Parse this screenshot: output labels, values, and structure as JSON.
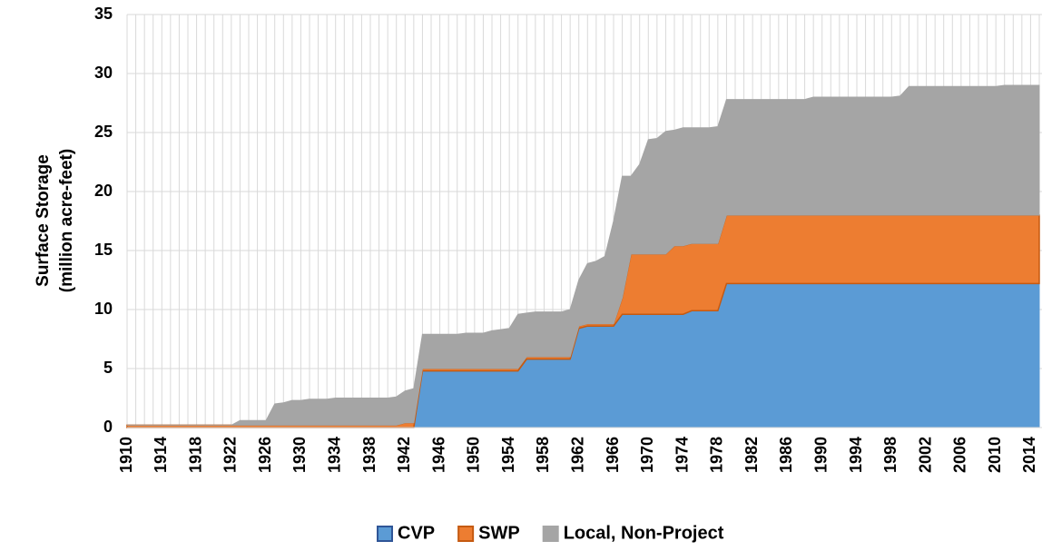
{
  "chart_data": {
    "type": "stacked_area",
    "y_label": [
      "Surface Storage",
      "(million acre-feet)"
    ],
    "x": [
      1910,
      1911,
      1912,
      1913,
      1914,
      1915,
      1916,
      1917,
      1918,
      1919,
      1920,
      1921,
      1922,
      1923,
      1924,
      1925,
      1926,
      1927,
      1928,
      1929,
      1930,
      1931,
      1932,
      1933,
      1934,
      1935,
      1936,
      1937,
      1938,
      1939,
      1940,
      1941,
      1942,
      1943,
      1944,
      1945,
      1946,
      1947,
      1948,
      1949,
      1950,
      1951,
      1952,
      1953,
      1954,
      1955,
      1956,
      1957,
      1958,
      1959,
      1960,
      1961,
      1962,
      1963,
      1964,
      1965,
      1966,
      1967,
      1968,
      1969,
      1970,
      1971,
      1972,
      1973,
      1974,
      1975,
      1976,
      1977,
      1978,
      1979,
      1980,
      1981,
      1982,
      1983,
      1984,
      1985,
      1986,
      1987,
      1988,
      1989,
      1990,
      1991,
      1992,
      1993,
      1994,
      1995,
      1996,
      1997,
      1998,
      1999,
      2000,
      2001,
      2002,
      2003,
      2004,
      2005,
      2006,
      2007,
      2008,
      2009,
      2010,
      2011,
      2012,
      2013,
      2014,
      2015
    ],
    "series": [
      {
        "name": "CVP",
        "color": "#5b9bd5",
        "values": [
          0,
          0,
          0,
          0,
          0,
          0,
          0,
          0,
          0,
          0,
          0,
          0,
          0,
          0,
          0,
          0,
          0,
          0,
          0,
          0,
          0,
          0,
          0,
          0,
          0,
          0,
          0,
          0,
          0,
          0,
          0,
          0,
          0,
          0,
          4.8,
          4.8,
          4.8,
          4.8,
          4.8,
          4.8,
          4.8,
          4.8,
          4.8,
          4.8,
          4.8,
          4.8,
          5.8,
          5.8,
          5.8,
          5.8,
          5.8,
          5.8,
          8.4,
          8.6,
          8.6,
          8.6,
          8.6,
          9.6,
          9.6,
          9.6,
          9.6,
          9.6,
          9.6,
          9.6,
          9.6,
          9.9,
          9.9,
          9.9,
          9.9,
          12.2,
          12.2,
          12.2,
          12.2,
          12.2,
          12.2,
          12.2,
          12.2,
          12.2,
          12.2,
          12.2,
          12.2,
          12.2,
          12.2,
          12.2,
          12.2,
          12.2,
          12.2,
          12.2,
          12.2,
          12.2,
          12.2,
          12.2,
          12.2,
          12.2,
          12.2,
          12.2,
          12.2,
          12.2,
          12.2,
          12.2,
          12.2,
          12.2,
          12.2,
          12.2,
          12.2,
          12.2
        ]
      },
      {
        "name": "SWP",
        "color": "#ed7d31",
        "values": [
          0.2,
          0.2,
          0.2,
          0.2,
          0.2,
          0.2,
          0.2,
          0.2,
          0.2,
          0.2,
          0.2,
          0.2,
          0.2,
          0.2,
          0.2,
          0.2,
          0.2,
          0.2,
          0.2,
          0.2,
          0.2,
          0.2,
          0.2,
          0.2,
          0.2,
          0.2,
          0.2,
          0.2,
          0.2,
          0.2,
          0.2,
          0.2,
          0.4,
          0.4,
          0.2,
          0.2,
          0.2,
          0.2,
          0.2,
          0.2,
          0.2,
          0.2,
          0.2,
          0.2,
          0.2,
          0.2,
          0.2,
          0.2,
          0.2,
          0.2,
          0.2,
          0.2,
          0.2,
          0.2,
          0.2,
          0.2,
          0.2,
          1.4,
          5.1,
          5.1,
          5.1,
          5.1,
          5.1,
          5.8,
          5.8,
          5.7,
          5.7,
          5.7,
          5.7,
          5.8,
          5.8,
          5.8,
          5.8,
          5.8,
          5.8,
          5.8,
          5.8,
          5.8,
          5.8,
          5.8,
          5.8,
          5.8,
          5.8,
          5.8,
          5.8,
          5.8,
          5.8,
          5.8,
          5.8,
          5.8,
          5.8,
          5.8,
          5.8,
          5.8,
          5.8,
          5.8,
          5.8,
          5.8,
          5.8,
          5.8,
          5.8,
          5.8,
          5.8,
          5.8,
          5.8,
          5.8
        ]
      },
      {
        "name": "Local, Non-Project",
        "color": "#a5a5a5",
        "values": [
          0,
          0,
          0,
          0,
          0,
          0,
          0,
          0,
          0,
          0,
          0,
          0,
          0,
          0.4,
          0.4,
          0.4,
          0.4,
          1.8,
          1.9,
          2.1,
          2.1,
          2.2,
          2.2,
          2.2,
          2.3,
          2.3,
          2.3,
          2.3,
          2.3,
          2.3,
          2.3,
          2.4,
          2.7,
          2.9,
          2.9,
          2.9,
          2.9,
          2.9,
          2.9,
          3.0,
          3.0,
          3.0,
          3.2,
          3.3,
          3.4,
          4.6,
          3.7,
          3.8,
          3.8,
          3.8,
          3.8,
          4.0,
          3.9,
          5.1,
          5.3,
          5.7,
          8.7,
          10.3,
          6.6,
          7.6,
          9.7,
          9.8,
          10.4,
          9.8,
          10.0,
          9.8,
          9.8,
          9.8,
          9.9,
          9.8,
          9.8,
          9.8,
          9.8,
          9.8,
          9.8,
          9.8,
          9.8,
          9.8,
          9.8,
          10.0,
          10.0,
          10.0,
          10.0,
          10.0,
          10.0,
          10.0,
          10.0,
          10.0,
          10.0,
          10.1,
          10.9,
          10.9,
          10.9,
          10.9,
          10.9,
          10.9,
          10.9,
          10.9,
          10.9,
          10.9,
          10.9,
          11.0,
          11.0,
          11.0,
          11.0,
          11.0
        ]
      }
    ],
    "xlim": [
      1910,
      2015
    ],
    "xticks": [
      1910,
      1914,
      1918,
      1922,
      1926,
      1930,
      1934,
      1938,
      1942,
      1946,
      1950,
      1954,
      1958,
      1962,
      1966,
      1970,
      1974,
      1978,
      1982,
      1986,
      1990,
      1994,
      1998,
      2002,
      2006,
      2010,
      2014
    ],
    "ylim": [
      0,
      35
    ],
    "yticks": [
      0,
      5,
      10,
      15,
      20,
      25,
      30,
      35
    ],
    "grid": true,
    "legend": "bottom"
  }
}
